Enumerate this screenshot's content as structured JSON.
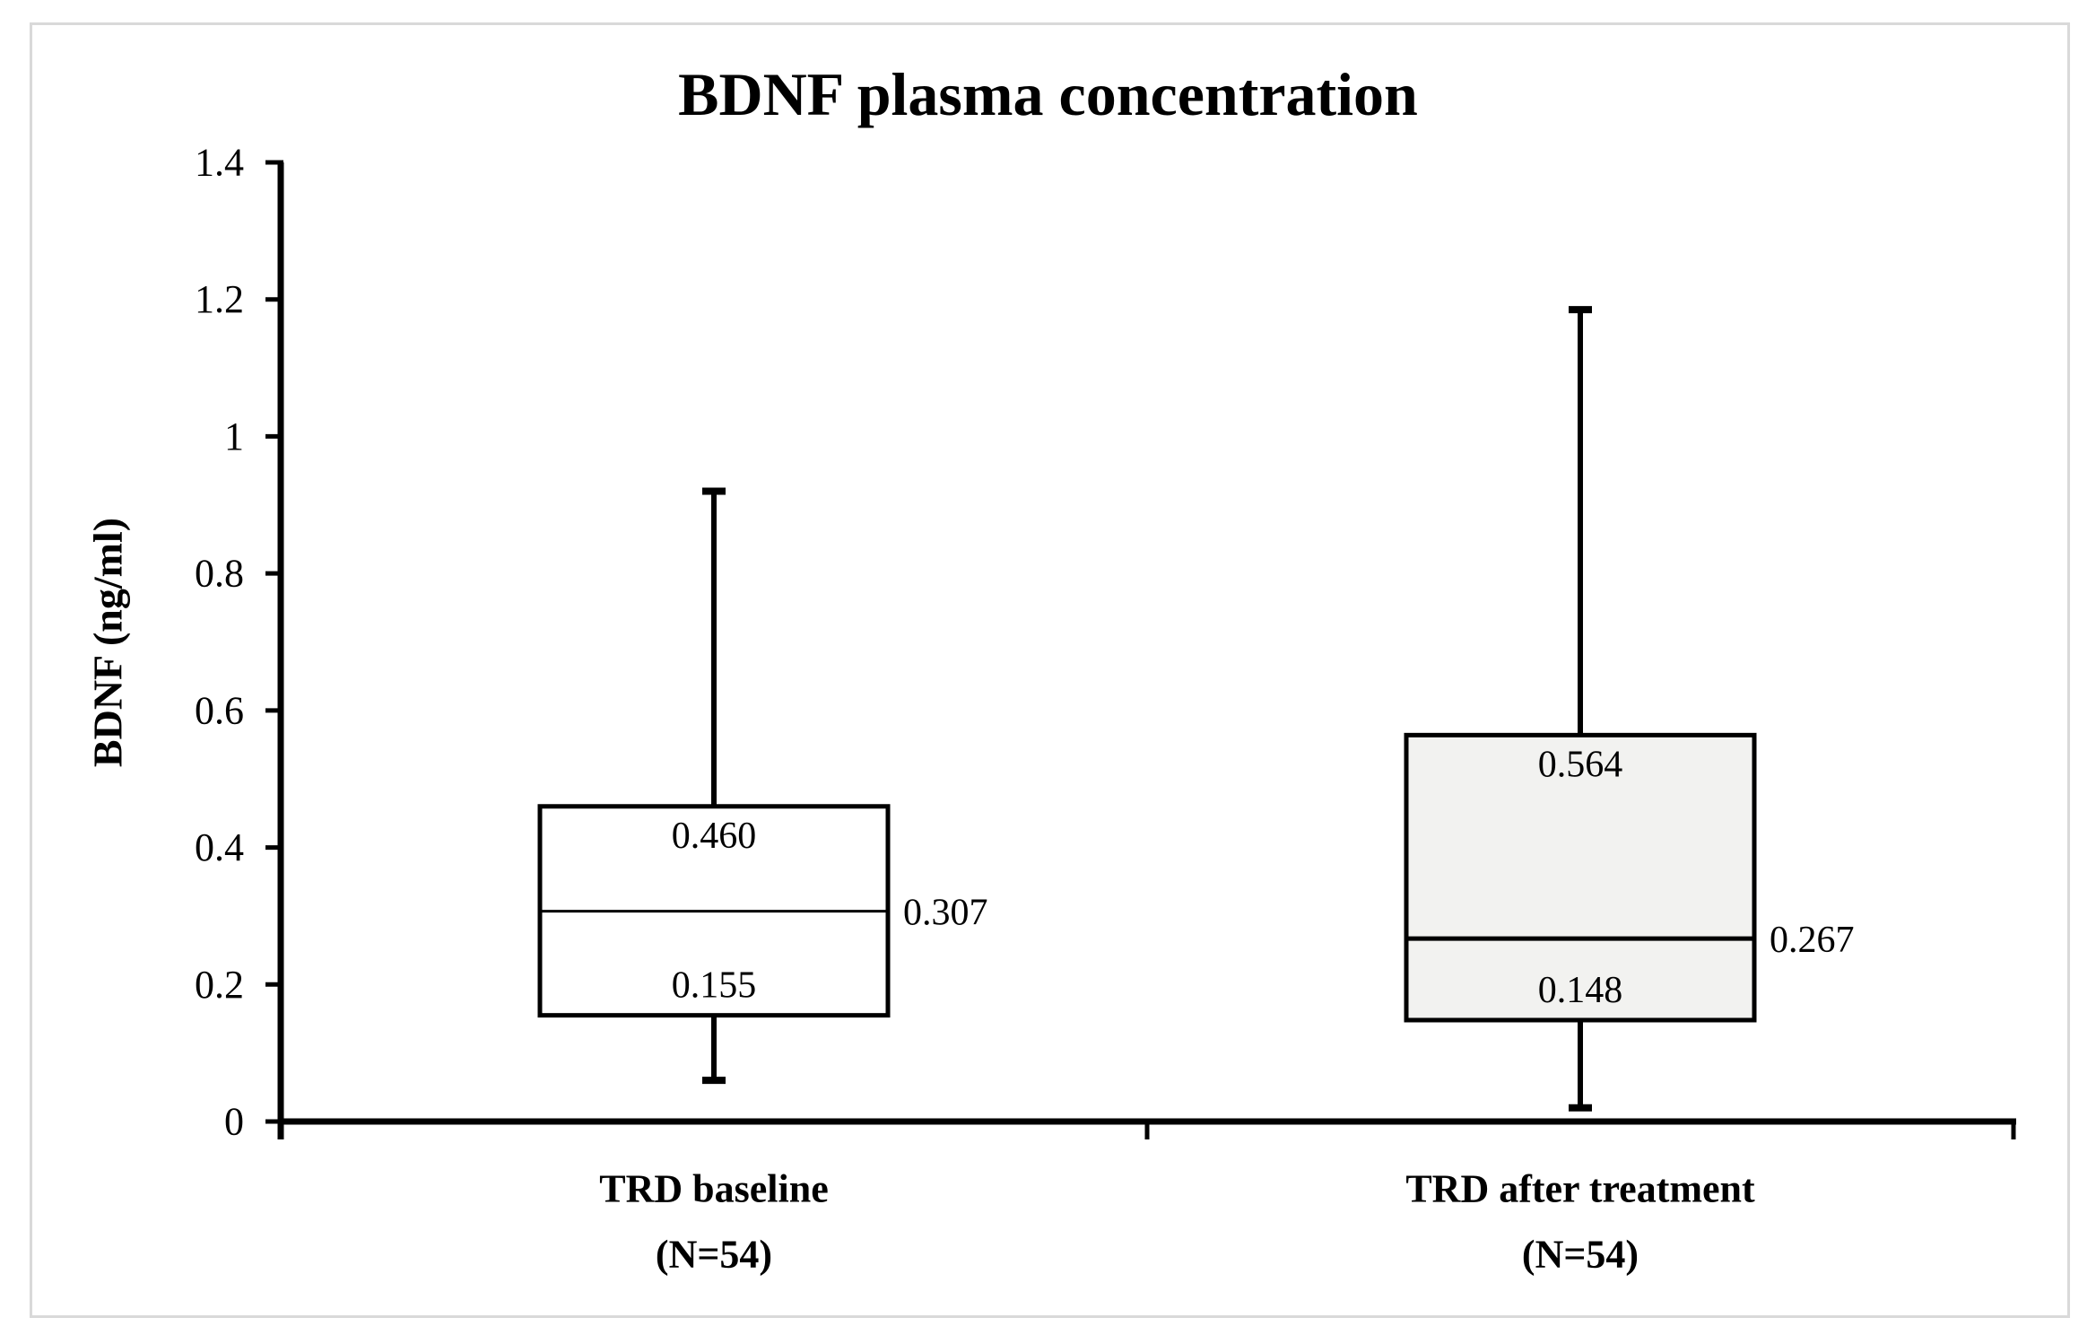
{
  "figure": {
    "title": "BDNF plasma concentration",
    "y_axis_label": "BDNF (ng/ml)"
  },
  "chart_data": {
    "type": "boxplot",
    "title": "BDNF plasma concentration",
    "xlabel": "",
    "ylabel": "BDNF (ng/ml)",
    "ylim": [
      0,
      1.4
    ],
    "yticks": [
      0,
      0.2,
      0.4,
      0.6,
      0.8,
      1.0,
      1.2,
      1.4
    ],
    "ytick_labels": [
      "0",
      "0.2",
      "0.4",
      "0.6",
      "0.8",
      "1",
      "1.2",
      "1.4"
    ],
    "grid": false,
    "legend_position": "none",
    "series": [
      {
        "category": "TRD baseline",
        "category_sub": "(N=54)",
        "n": 54,
        "whisker_low": 0.06,
        "q1": 0.155,
        "median": 0.307,
        "q3": 0.46,
        "whisker_high": 0.92,
        "box_fill": "#ffffff",
        "value_labels": {
          "q1": "0.155",
          "median": "0.307",
          "q3": "0.460"
        }
      },
      {
        "category": "TRD after treatment",
        "category_sub": "(N=54)",
        "n": 54,
        "whisker_low": 0.02,
        "q1": 0.148,
        "median": 0.267,
        "q3": 0.564,
        "whisker_high": 1.185,
        "box_fill": "#f2f2f0",
        "value_labels": {
          "q1": "0.148",
          "median": "0.267",
          "q3": "0.564"
        }
      }
    ],
    "colors": {
      "line": "#000000",
      "text": "#000000",
      "frame": "#d9d9d9",
      "background": "#ffffff"
    }
  }
}
